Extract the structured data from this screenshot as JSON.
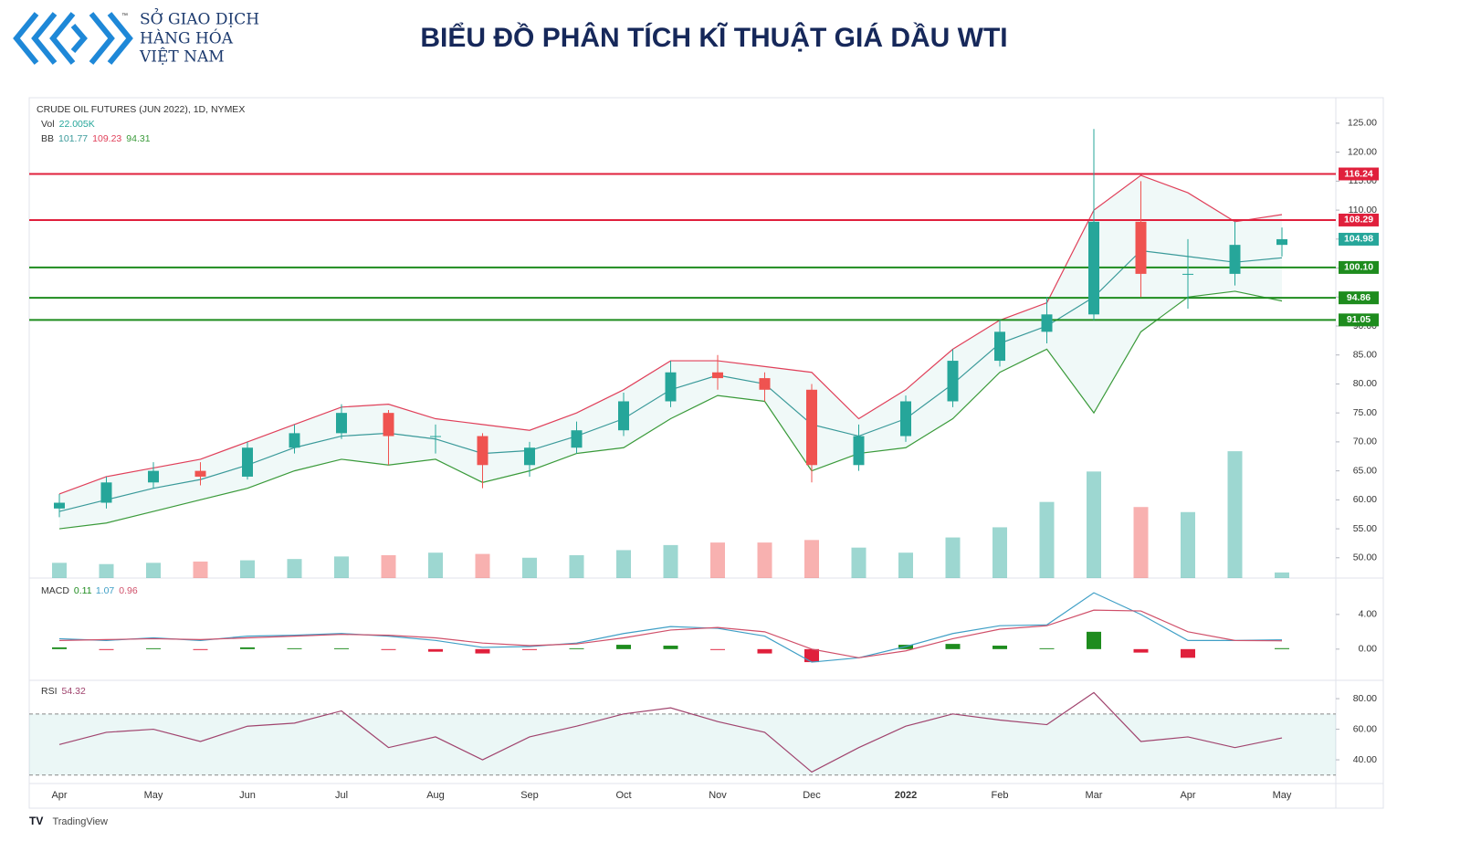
{
  "header": {
    "logo_lines": [
      "SỞ GIAO DỊCH",
      "HÀNG HÓA",
      "VIỆT NAM"
    ],
    "logo_mark": "™",
    "title": "BIỂU ĐỒ PHÂN TÍCH KĨ THUẬT GIÁ DẦU WTI"
  },
  "chart_data": {
    "type": "candlestick",
    "title": "CRUDE OIL FUTURES (JUN 2022), 1D, NYMEX",
    "categories": [
      "Apr",
      null,
      "May",
      null,
      "Jun",
      null,
      "Jul",
      null,
      "Aug",
      null,
      "Sep",
      null,
      "Oct",
      null,
      "Nov",
      null,
      "Dec",
      null,
      "2022",
      null,
      "Feb",
      null,
      "Mar",
      null,
      "Apr",
      null,
      "May"
    ],
    "open": [
      58.5,
      59.5,
      63,
      65,
      64,
      69,
      71.5,
      75,
      71,
      71,
      66,
      69,
      72,
      77,
      82,
      81,
      79,
      66,
      71,
      77,
      84,
      89,
      92,
      108,
      99,
      99,
      104
    ],
    "high": [
      61,
      64,
      66.5,
      66.5,
      70,
      73,
      76.5,
      75.5,
      73,
      71.5,
      70,
      73.5,
      78.5,
      84,
      85,
      82,
      80,
      73,
      78,
      86,
      91,
      95,
      124,
      115,
      105,
      108,
      107
    ],
    "low": [
      57,
      58.5,
      62,
      62.5,
      63.5,
      68,
      70.5,
      66,
      68,
      62,
      64,
      68,
      71,
      76,
      79,
      77,
      63,
      65,
      70,
      76,
      83,
      87,
      91,
      95,
      93,
      97,
      102
    ],
    "close": [
      59.5,
      63,
      65,
      64,
      69,
      71.5,
      75,
      71,
      71,
      66,
      69,
      72,
      77,
      82,
      81,
      79,
      66,
      71,
      77,
      84,
      89,
      92,
      108,
      99,
      99,
      104,
      104.98
    ],
    "up_color": "#26a69a",
    "down_color": "#ef5350",
    "ylim": [
      46.5,
      129.4
    ],
    "yticks": [
      {
        "value": 50,
        "label": "50.00"
      },
      {
        "value": 55,
        "label": "55.00"
      },
      {
        "value": 60,
        "label": "60.00"
      },
      {
        "value": 65,
        "label": "65.00"
      },
      {
        "value": 70,
        "label": "70.00"
      },
      {
        "value": 75,
        "label": "75.00"
      },
      {
        "value": 80,
        "label": "80.00"
      },
      {
        "value": 85,
        "label": "85.00"
      },
      {
        "value": 90,
        "label": "90.00"
      },
      {
        "value": 95,
        "label": "95.00"
      },
      {
        "value": 100,
        "label": "100.00"
      },
      {
        "value": 105,
        "label": "105.00"
      },
      {
        "value": 110,
        "label": "110.00"
      },
      {
        "value": 115,
        "label": "115.00"
      },
      {
        "value": 120,
        "label": "120.00"
      },
      {
        "value": 125,
        "label": "125.00"
      }
    ],
    "bollinger": {
      "name": "BB",
      "middle": {
        "color": "#3a9a9a",
        "values": [
          58,
          60,
          62,
          63.5,
          66,
          69,
          71,
          71.5,
          70.5,
          68,
          68.5,
          71,
          74,
          79,
          81.5,
          80,
          73,
          71,
          74,
          80,
          87,
          90,
          95,
          103,
          102,
          101,
          101.77
        ]
      },
      "upper": {
        "color": "#e0405a",
        "values": [
          61,
          64,
          65.5,
          67,
          70,
          73,
          76,
          76.5,
          74,
          73,
          72,
          75,
          79,
          84,
          84,
          83,
          82,
          74,
          79,
          86,
          91,
          94,
          110,
          116,
          113,
          108,
          109.23
        ]
      },
      "lower": {
        "color": "#3a9a3a",
        "values": [
          55,
          56,
          58,
          60,
          62,
          65,
          67,
          66,
          67,
          63,
          65,
          68,
          69,
          74,
          78,
          77,
          65,
          68,
          69,
          74,
          82,
          86,
          75,
          89,
          95,
          96,
          94.31
        ]
      }
    },
    "levels": [
      {
        "value": 116.24,
        "color": "#e0203c"
      },
      {
        "value": 108.29,
        "color": "#e0203c"
      },
      {
        "value": 100.1,
        "label": "100.10",
        "color": "#1e8c1e"
      },
      {
        "value": 94.86,
        "color": "#1e8c1e"
      },
      {
        "value": 91.05,
        "color": "#1e8c1e"
      }
    ],
    "volume": {
      "name": "Vol",
      "ylim": [
        0,
        540
      ],
      "values": [
        60,
        55,
        60,
        65,
        70,
        75,
        85,
        90,
        100,
        95,
        80,
        90,
        110,
        130,
        140,
        140,
        150,
        120,
        100,
        160,
        200,
        300,
        420,
        280,
        260,
        500,
        22.005
      ],
      "value_labels": [
        null,
        null,
        null,
        null,
        null,
        null,
        null,
        null,
        null,
        null,
        null,
        null,
        null,
        null,
        null,
        null,
        null,
        null,
        null,
        null,
        null,
        null,
        null,
        null,
        null,
        null,
        "22.005K"
      ]
    },
    "macd": {
      "name": "MACD",
      "ylim": [
        -3.6,
        8.2
      ],
      "yticks": [
        {
          "value": 0,
          "label": "0.00"
        },
        {
          "value": 4,
          "label": "4.00"
        }
      ],
      "histogram": {
        "up_color": "#1e8c1e",
        "down_color": "#e0203c",
        "values": [
          0.2,
          -0.1,
          0.1,
          -0.1,
          0.2,
          0.1,
          0.1,
          -0.1,
          -0.3,
          -0.5,
          -0.1,
          0.1,
          0.5,
          0.4,
          -0.1,
          -0.5,
          -1.5,
          0,
          0.5,
          0.6,
          0.4,
          0.1,
          2,
          -0.4,
          -1,
          0,
          0.11
        ]
      },
      "macd": {
        "color": "#3f9fc6",
        "values": [
          1.2,
          1,
          1.3,
          1,
          1.5,
          1.6,
          1.8,
          1.5,
          1,
          0.2,
          0.3,
          0.7,
          1.8,
          2.6,
          2.4,
          1.5,
          -1.5,
          -1,
          0.3,
          1.8,
          2.7,
          2.8,
          6.5,
          4,
          1,
          1,
          1.07
        ]
      },
      "signal": {
        "color": "#d0506a",
        "values": [
          1,
          1.1,
          1.2,
          1.1,
          1.3,
          1.5,
          1.7,
          1.6,
          1.3,
          0.7,
          0.4,
          0.6,
          1.3,
          2.2,
          2.5,
          2,
          0,
          -1,
          -0.2,
          1.2,
          2.3,
          2.7,
          4.5,
          4.4,
          2,
          1,
          0.96
        ]
      }
    },
    "rsi": {
      "name": "RSI",
      "color": "#a0446e",
      "band": [
        30,
        70
      ],
      "ylim": [
        24.5,
        92
      ],
      "yticks": [
        {
          "value": 40,
          "label": "40.00"
        },
        {
          "value": 60,
          "label": "60.00"
        },
        {
          "value": 80,
          "label": "80.00"
        }
      ],
      "values": [
        50,
        58,
        60,
        52,
        62,
        64,
        72,
        48,
        55,
        40,
        55,
        62,
        70,
        74,
        65,
        58,
        32,
        48,
        62,
        70,
        66,
        63,
        84,
        52,
        55,
        48,
        54.32
      ]
    },
    "footer": "TradingView"
  }
}
